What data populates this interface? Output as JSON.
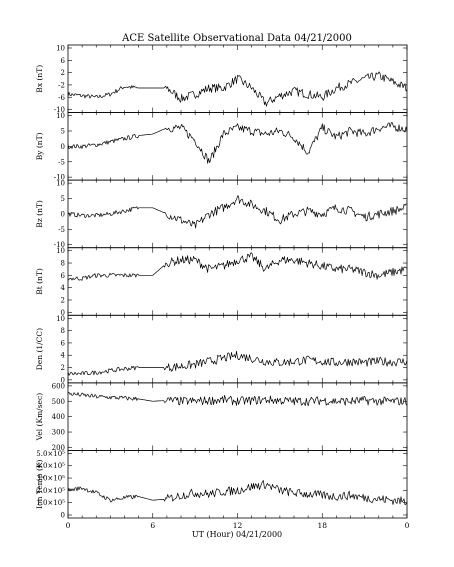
{
  "chart_data": {
    "type": "line",
    "title": "ACE Satellite Observational Data   04/21/2000",
    "xlabel": "UT (Hour)  04/21/2000",
    "x_ticks": [
      "0",
      "6",
      "12",
      "18",
      "0"
    ],
    "x_range_hours": [
      0,
      24
    ],
    "panels": [
      {
        "ylabel": "Bx (nT)",
        "ylim": [
          -10,
          10
        ],
        "yticks": [
          "10",
          "6",
          "2",
          "-2",
          "-6",
          "-10"
        ],
        "x_hours": [
          0,
          1,
          2,
          3,
          4,
          5,
          6,
          7,
          8,
          9,
          10,
          11,
          12,
          13,
          14,
          15,
          16,
          17,
          18,
          19,
          20,
          21,
          22,
          23,
          24
        ],
        "values": [
          -5,
          -5.5,
          -6,
          -5,
          -2.5,
          -3,
          -3,
          -3,
          -6.5,
          -5,
          -3,
          -3,
          0,
          -3,
          -8,
          -5.5,
          -4,
          -5,
          -6,
          -3,
          -1.5,
          0,
          1,
          -1,
          -3
        ]
      },
      {
        "ylabel": "By (nT)",
        "ylim": [
          -10,
          10
        ],
        "yticks": [
          "10",
          "5",
          "0",
          "-5",
          "-10"
        ],
        "x_hours": [
          0,
          1,
          2,
          3,
          4,
          5,
          6,
          7,
          8,
          9,
          10,
          11,
          12,
          13,
          14,
          15,
          16,
          17,
          18,
          19,
          20,
          21,
          22,
          23,
          24
        ],
        "values": [
          0,
          0,
          0.5,
          1.5,
          2.5,
          3.5,
          4,
          6,
          6,
          2,
          -5,
          4,
          6,
          5,
          4,
          5,
          3,
          -2,
          6,
          3,
          5,
          4,
          6,
          6.5,
          5.5
        ]
      },
      {
        "ylabel": "Bz (nT)",
        "ylim": [
          -10,
          10
        ],
        "yticks": [
          "10",
          "5",
          "0",
          "-5",
          "-10"
        ],
        "x_hours": [
          0,
          1,
          2,
          3,
          4,
          5,
          6,
          7,
          8,
          9,
          10,
          11,
          12,
          13,
          14,
          15,
          16,
          17,
          18,
          19,
          20,
          21,
          22,
          23,
          24
        ],
        "values": [
          0,
          -0.5,
          -0.5,
          0,
          1,
          2,
          2,
          0,
          -2,
          -4,
          0,
          2,
          5,
          3,
          1,
          -2,
          0,
          1,
          0,
          2,
          1,
          -1,
          0,
          1,
          2
        ]
      },
      {
        "ylabel": "Bt (nT)",
        "ylim": [
          0,
          10
        ],
        "yticks": [
          "10",
          "8",
          "6",
          "4",
          "2",
          "0"
        ],
        "x_hours": [
          0,
          1,
          2,
          3,
          4,
          5,
          6,
          7,
          8,
          9,
          10,
          11,
          12,
          13,
          14,
          15,
          16,
          17,
          18,
          19,
          20,
          21,
          22,
          23,
          24
        ],
        "values": [
          5.5,
          5.5,
          6,
          6,
          6,
          6,
          6,
          8,
          8.5,
          8.5,
          7,
          7.5,
          8.5,
          9,
          7,
          8.5,
          8.5,
          8,
          7.5,
          7,
          7,
          6.5,
          6,
          6.5,
          7
        ]
      },
      {
        "ylabel": "Den (1/CC)",
        "ylim": [
          0,
          10
        ],
        "yticks": [
          "10",
          "8",
          "6",
          "4",
          "2",
          "0"
        ],
        "x_hours": [
          0,
          1,
          2,
          3,
          4,
          5,
          6,
          7,
          8,
          9,
          10,
          11,
          12,
          13,
          14,
          15,
          16,
          17,
          18,
          19,
          20,
          21,
          22,
          23,
          24
        ],
        "values": [
          1,
          1,
          1.2,
          1.5,
          1.8,
          2,
          2,
          2,
          2.2,
          2.5,
          3,
          3.5,
          4,
          3.5,
          3,
          2.8,
          3,
          3.2,
          3,
          2.8,
          3,
          2.8,
          3,
          2.9,
          3
        ]
      },
      {
        "ylabel": "Vel (Km/sec)",
        "ylim": [
          200,
          600
        ],
        "yticks": [
          "600",
          "500",
          "400",
          "300",
          "200"
        ],
        "x_hours": [
          0,
          1,
          2,
          3,
          4,
          5,
          6,
          7,
          8,
          9,
          10,
          11,
          12,
          13,
          14,
          15,
          16,
          17,
          18,
          19,
          20,
          21,
          22,
          23,
          24
        ],
        "values": [
          550,
          540,
          530,
          525,
          520,
          515,
          500,
          505,
          500,
          500,
          505,
          510,
          500,
          505,
          510,
          505,
          500,
          500,
          505,
          500,
          500,
          505,
          500,
          500,
          500
        ]
      },
      {
        "ylabel": "Ion Temp (K)",
        "ylim": [
          0,
          500000
        ],
        "yticks": [
          "5.0×10⁵",
          "4.0×10⁵",
          "3.0×10⁵",
          "2.0×10⁵",
          "1.0×10⁵",
          "0"
        ],
        "x_hours": [
          0,
          1,
          2,
          3,
          4,
          5,
          6,
          7,
          8,
          9,
          10,
          11,
          12,
          13,
          14,
          15,
          16,
          17,
          18,
          19,
          20,
          21,
          22,
          23,
          24
        ],
        "values": [
          200000,
          220000,
          180000,
          120000,
          140000,
          150000,
          120000,
          130000,
          160000,
          180000,
          170000,
          190000,
          200000,
          230000,
          250000,
          200000,
          180000,
          170000,
          160000,
          150000,
          160000,
          140000,
          130000,
          120000,
          110000
        ]
      }
    ]
  }
}
